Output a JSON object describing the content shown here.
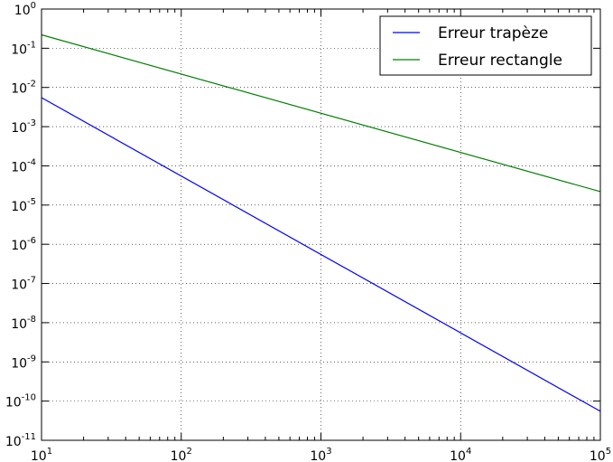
{
  "chart_data": {
    "type": "line",
    "title": "",
    "xlabel": "",
    "ylabel": "",
    "xscale": "log",
    "yscale": "log",
    "xlim": [
      10,
      100000
    ],
    "ylim": [
      1e-11,
      1
    ],
    "grid": true,
    "legend_position": "top-right",
    "x_ticks": [
      {
        "base": "10",
        "exp": "1"
      },
      {
        "base": "10",
        "exp": "2"
      },
      {
        "base": "10",
        "exp": "3"
      },
      {
        "base": "10",
        "exp": "4"
      },
      {
        "base": "10",
        "exp": "5"
      }
    ],
    "y_ticks": [
      {
        "base": "10",
        "exp": "0"
      },
      {
        "base": "10",
        "exp": "-1"
      },
      {
        "base": "10",
        "exp": "-2"
      },
      {
        "base": "10",
        "exp": "-3"
      },
      {
        "base": "10",
        "exp": "-4"
      },
      {
        "base": "10",
        "exp": "-5"
      },
      {
        "base": "10",
        "exp": "-6"
      },
      {
        "base": "10",
        "exp": "-7"
      },
      {
        "base": "10",
        "exp": "-8"
      },
      {
        "base": "10",
        "exp": "-9"
      },
      {
        "base": "10",
        "exp": "-10"
      },
      {
        "base": "10",
        "exp": "-11"
      }
    ],
    "series": [
      {
        "name": "Erreur trapèze",
        "color": "#0000ff",
        "x": [
          10,
          100000
        ],
        "y": [
          0.0055,
          5.5e-11
        ]
      },
      {
        "name": "Erreur rectangle",
        "color": "#008000",
        "x": [
          10,
          100000
        ],
        "y": [
          0.22,
          2.2e-05
        ]
      }
    ]
  }
}
